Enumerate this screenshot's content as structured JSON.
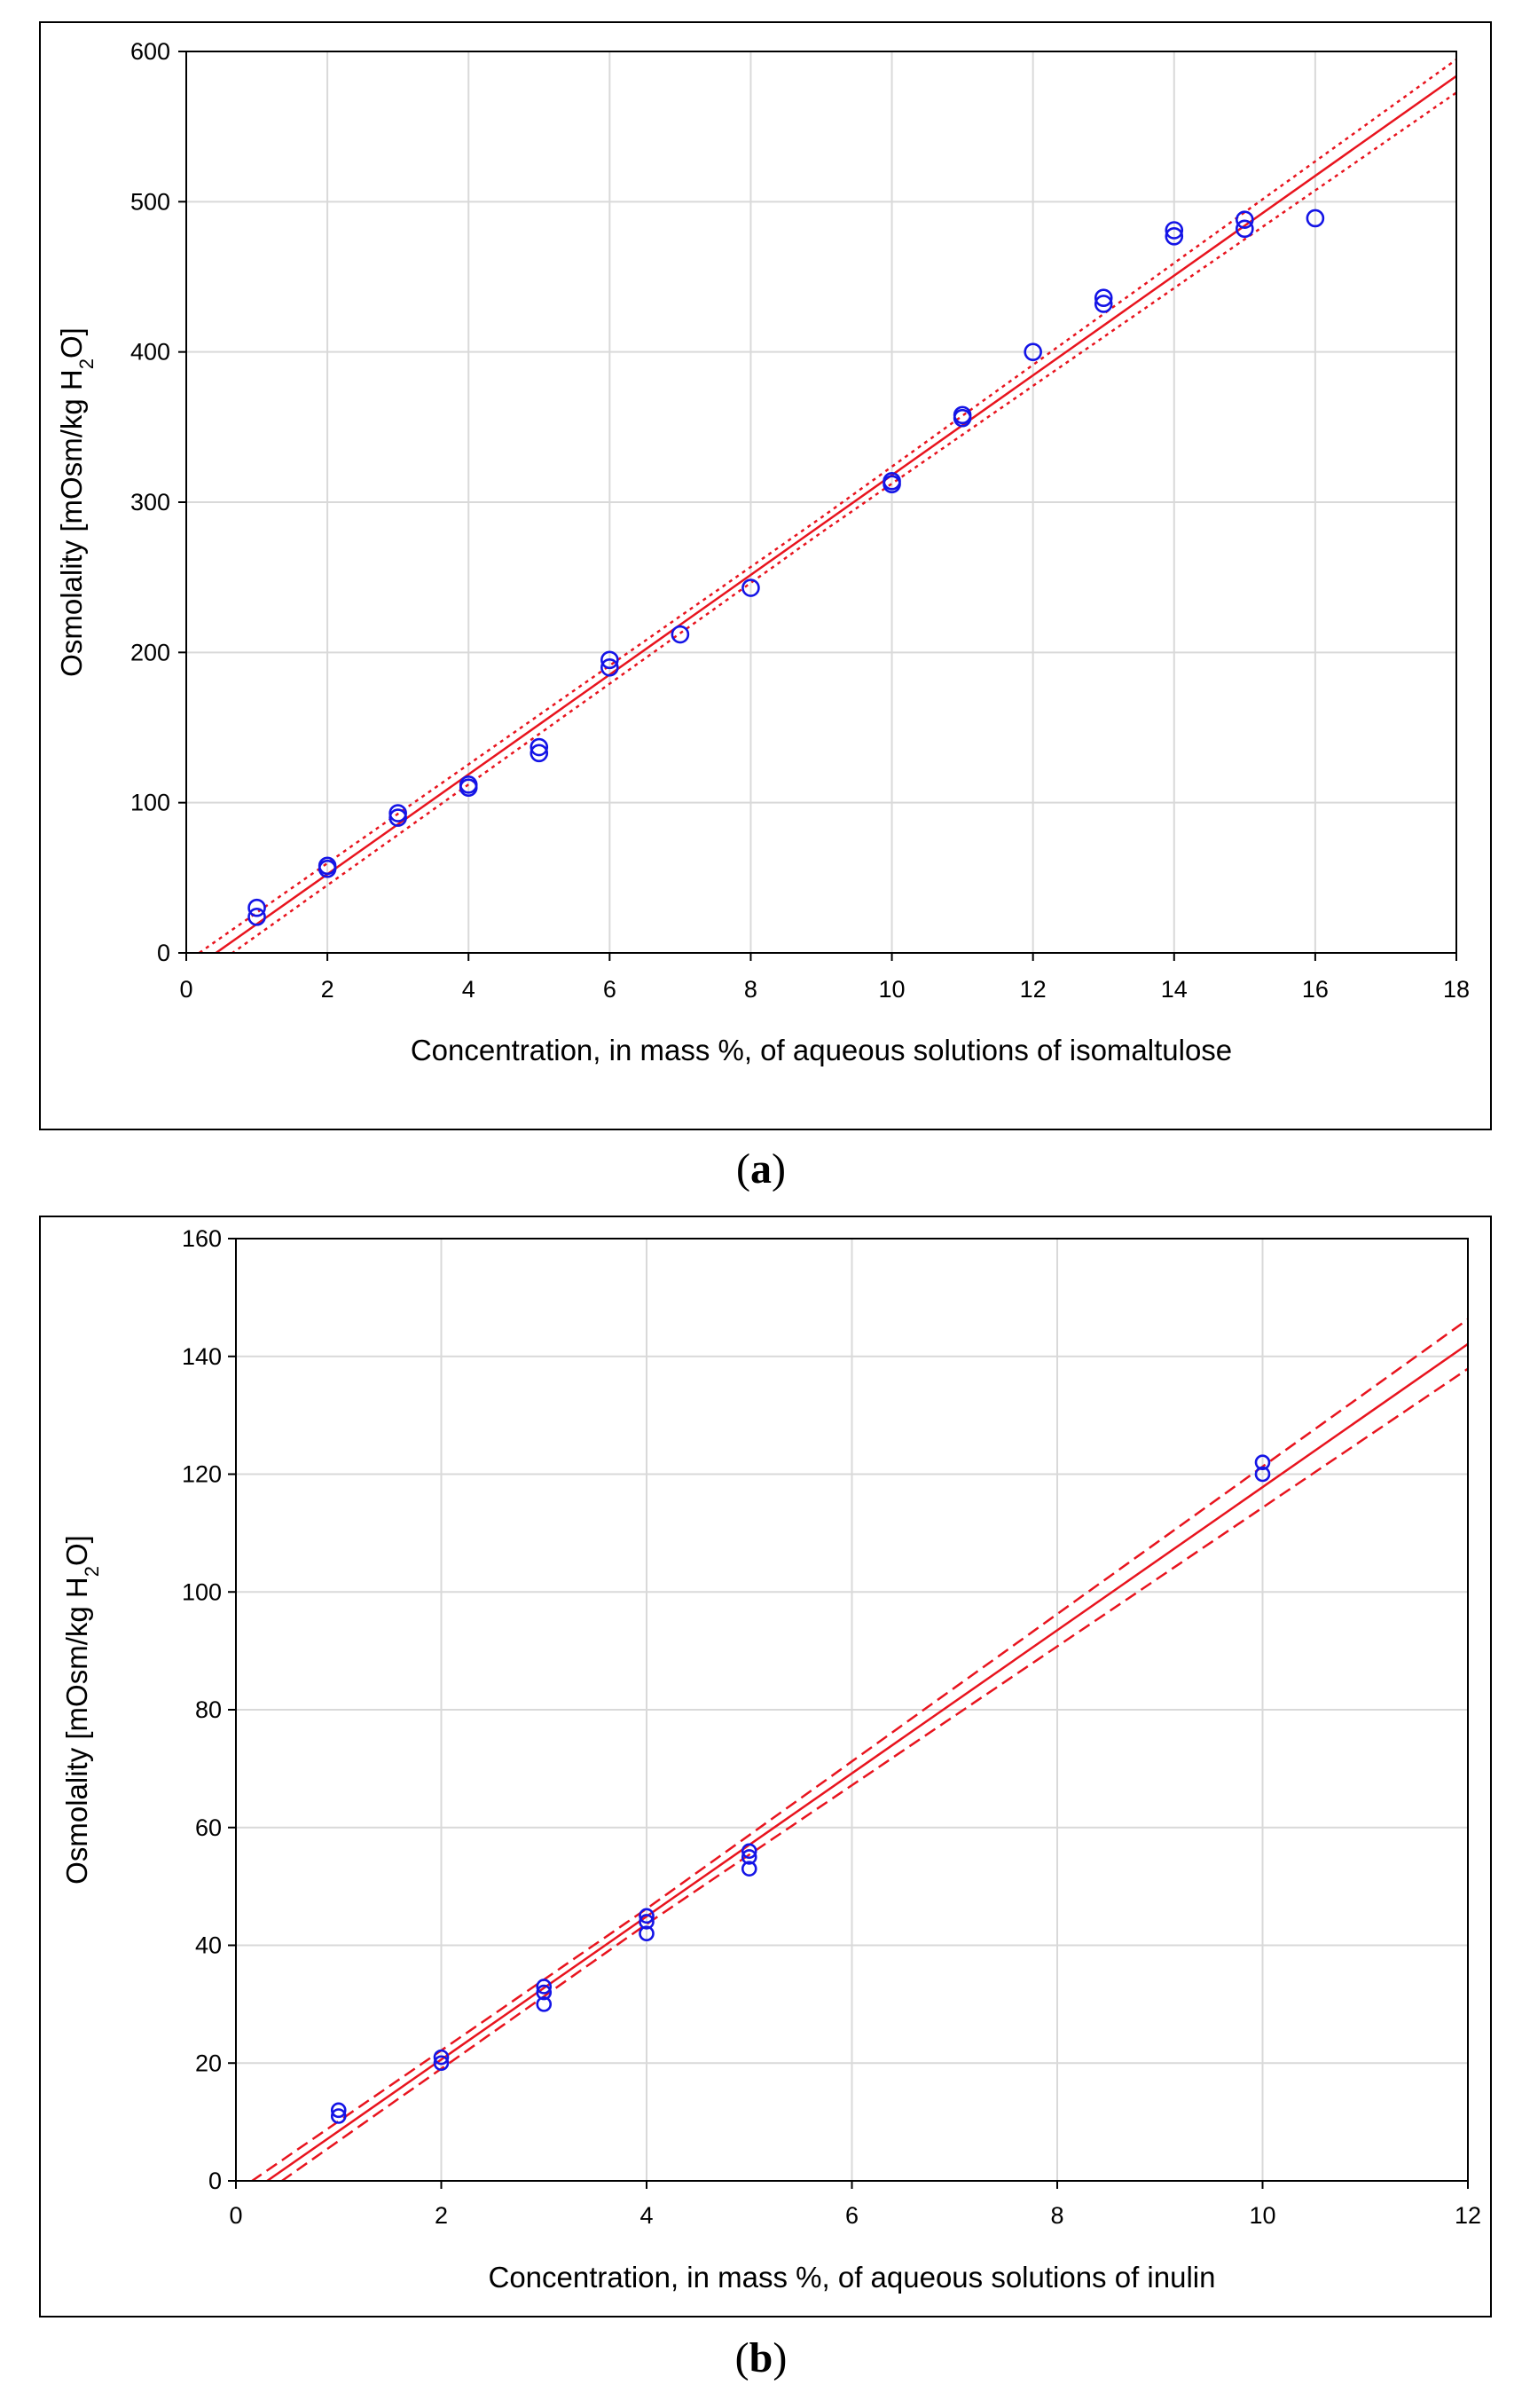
{
  "chart_data": [
    {
      "panel": "a",
      "type": "scatter",
      "xlabel": "Concentration, in mass %, of aqueous solutions of isomaltulose",
      "ylabel": "Osmolality [mOsm/kg H2O]",
      "ylabel_parts": {
        "pre": "Osmolality [mOsm/kg H",
        "sub": "2",
        "post": "O]"
      },
      "xlim": [
        0,
        18
      ],
      "ylim": [
        0,
        600
      ],
      "xticks": [
        0,
        2,
        4,
        6,
        8,
        10,
        12,
        14,
        16,
        18
      ],
      "yticks": [
        0,
        100,
        200,
        300,
        400,
        500,
        600
      ],
      "grid": true,
      "points": [
        [
          1,
          24
        ],
        [
          1,
          30
        ],
        [
          2,
          56
        ],
        [
          2,
          58
        ],
        [
          3,
          90
        ],
        [
          3,
          93
        ],
        [
          4,
          110
        ],
        [
          4,
          112
        ],
        [
          5,
          133
        ],
        [
          5,
          137
        ],
        [
          6,
          190
        ],
        [
          6,
          195
        ],
        [
          7,
          212
        ],
        [
          8,
          243
        ],
        [
          10,
          312
        ],
        [
          10,
          314
        ],
        [
          11,
          356
        ],
        [
          11,
          358
        ],
        [
          12,
          400
        ],
        [
          13,
          432
        ],
        [
          13,
          436
        ],
        [
          14,
          477
        ],
        [
          14,
          481
        ],
        [
          15,
          482
        ],
        [
          15,
          488
        ],
        [
          16,
          489
        ]
      ],
      "fit": {
        "slope": 33.2,
        "intercept": -14,
        "color": "#e8141e",
        "ci_style": "dotted"
      },
      "ci_band": [
        [
          0,
          8
        ],
        [
          9,
          5
        ],
        [
          18,
          11
        ]
      ],
      "marker_color": "#1414e6"
    },
    {
      "panel": "b",
      "type": "scatter",
      "xlabel": "Concentration, in mass %, of aqueous solutions of inulin",
      "ylabel": "Osmolality [mOsm/kg H2O]",
      "ylabel_parts": {
        "pre": "Osmolality [mOsm/kg H",
        "sub": "2",
        "post": "O]"
      },
      "xlim": [
        0,
        12
      ],
      "ylim": [
        0,
        160
      ],
      "xticks": [
        0,
        2,
        4,
        6,
        8,
        10,
        12
      ],
      "yticks": [
        0,
        20,
        40,
        60,
        80,
        100,
        120,
        140,
        160
      ],
      "grid": true,
      "points": [
        [
          1,
          11
        ],
        [
          1,
          12
        ],
        [
          2,
          20
        ],
        [
          2,
          21
        ],
        [
          3,
          30
        ],
        [
          3,
          32
        ],
        [
          3,
          33
        ],
        [
          4,
          42
        ],
        [
          4,
          44
        ],
        [
          4,
          45
        ],
        [
          5,
          53
        ],
        [
          5,
          55
        ],
        [
          5,
          56
        ],
        [
          10,
          120
        ],
        [
          10,
          122
        ]
      ],
      "fit": {
        "slope": 12.15,
        "intercept": -3.7,
        "color": "#e8141e",
        "ci_style": "dashed"
      },
      "ci_band": [
        [
          0,
          1.8
        ],
        [
          4,
          1.3
        ],
        [
          12,
          4.2
        ]
      ],
      "marker_color": "#1414e6"
    }
  ],
  "panel_labels": [
    {
      "open": "(",
      "letter": "a",
      "close": ")"
    },
    {
      "open": "(",
      "letter": "b",
      "close": ")"
    }
  ]
}
